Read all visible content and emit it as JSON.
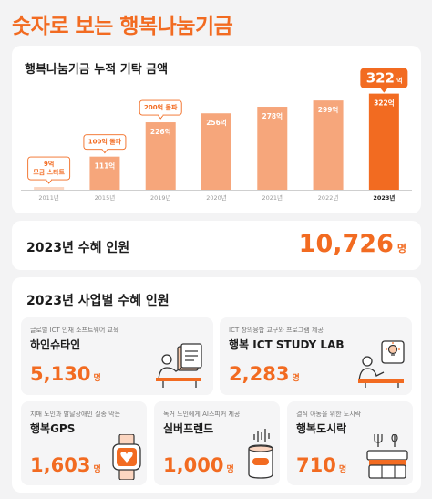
{
  "page_title": "숫자로 보는 행복나눔기금",
  "chart_card": {
    "title": "행복나눔기금 누적 기탁 금액"
  },
  "chart_data": {
    "type": "bar",
    "title": "행복나눔기금 누적 기탁 금액",
    "categories": [
      "2011년",
      "2015년",
      "2019년",
      "2020년",
      "2021년",
      "2022년",
      "2023년"
    ],
    "values": [
      9,
      111,
      226,
      256,
      278,
      299,
      322
    ],
    "value_labels": [
      "",
      "111억",
      "226억",
      "256억",
      "278억",
      "299억",
      "322억"
    ],
    "highlight_value": "322",
    "highlight_unit": "억",
    "ylim": [
      0,
      330
    ],
    "colors": {
      "bar": "#f6a67b",
      "highlight": "#f26b21",
      "first": "#fbd5c0"
    },
    "annotations": [
      {
        "category": "2011년",
        "lines": [
          "9억",
          "모금 스타트"
        ]
      },
      {
        "category": "2015년",
        "lines": [
          "100억 돌파"
        ]
      },
      {
        "category": "2019년",
        "lines": [
          "200억 돌파"
        ]
      }
    ]
  },
  "total_card": {
    "title": "2023년 수혜 인원",
    "value": "10,726",
    "unit": "명"
  },
  "biz_card": {
    "title": "2023년 사업별 수혜 인원",
    "programs": [
      {
        "desc": "글로벌 ICT 인재 소프트웨어 교육",
        "name": "하인슈타인",
        "value": "5,130",
        "unit": "명",
        "icon": "teacher-board-icon"
      },
      {
        "desc": "ICT 창의융합 교구와 프로그램 제공",
        "name": "행복 ICT STUDY LAB",
        "value": "2,283",
        "unit": "명",
        "icon": "student-lightbulb-icon"
      },
      {
        "desc": "치매 노인과 발달장애인 실종 막는",
        "name": "행복GPS",
        "value": "1,603",
        "unit": "명",
        "icon": "gps-watch-icon"
      },
      {
        "desc": "독거 노인에게 AI스피커 제공",
        "name": "실버프렌드",
        "value": "1,000",
        "unit": "명",
        "icon": "ai-speaker-icon"
      },
      {
        "desc": "결식 아동을 위한 도시락",
        "name": "행복도시락",
        "value": "710",
        "unit": "명",
        "icon": "lunchbox-icon"
      }
    ]
  }
}
